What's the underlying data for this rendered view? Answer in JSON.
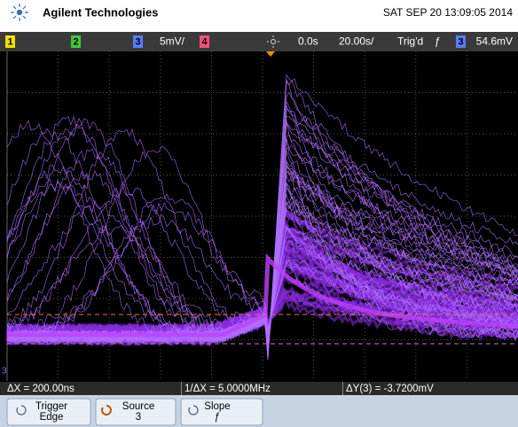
{
  "header": {
    "brand": "Agilent Technologies",
    "datetime": "SAT SEP 20 13:09:05 2014"
  },
  "channel_bar": {
    "channels": [
      "1",
      "2",
      "3",
      "4"
    ],
    "ch3_scale": "5mV/",
    "time_delay": "0.0s",
    "time_scale": "20.00s/",
    "trigger_status": "Trig'd",
    "trigger_slope": "ƒ",
    "trigger_source": "3",
    "trigger_level": "54.6mV"
  },
  "markers": {
    "trigger": "T",
    "channel": "3"
  },
  "measurements": [
    "ΔX = 200.00ns",
    "1/ΔX = 5.0000MHz",
    "ΔY(3) = -3.7200mV"
  ],
  "softkeys": [
    {
      "label": "Trigger",
      "value": "Edge"
    },
    {
      "label": "Source",
      "value": "3"
    },
    {
      "label": "Slope",
      "value": "ƒ"
    }
  ]
}
